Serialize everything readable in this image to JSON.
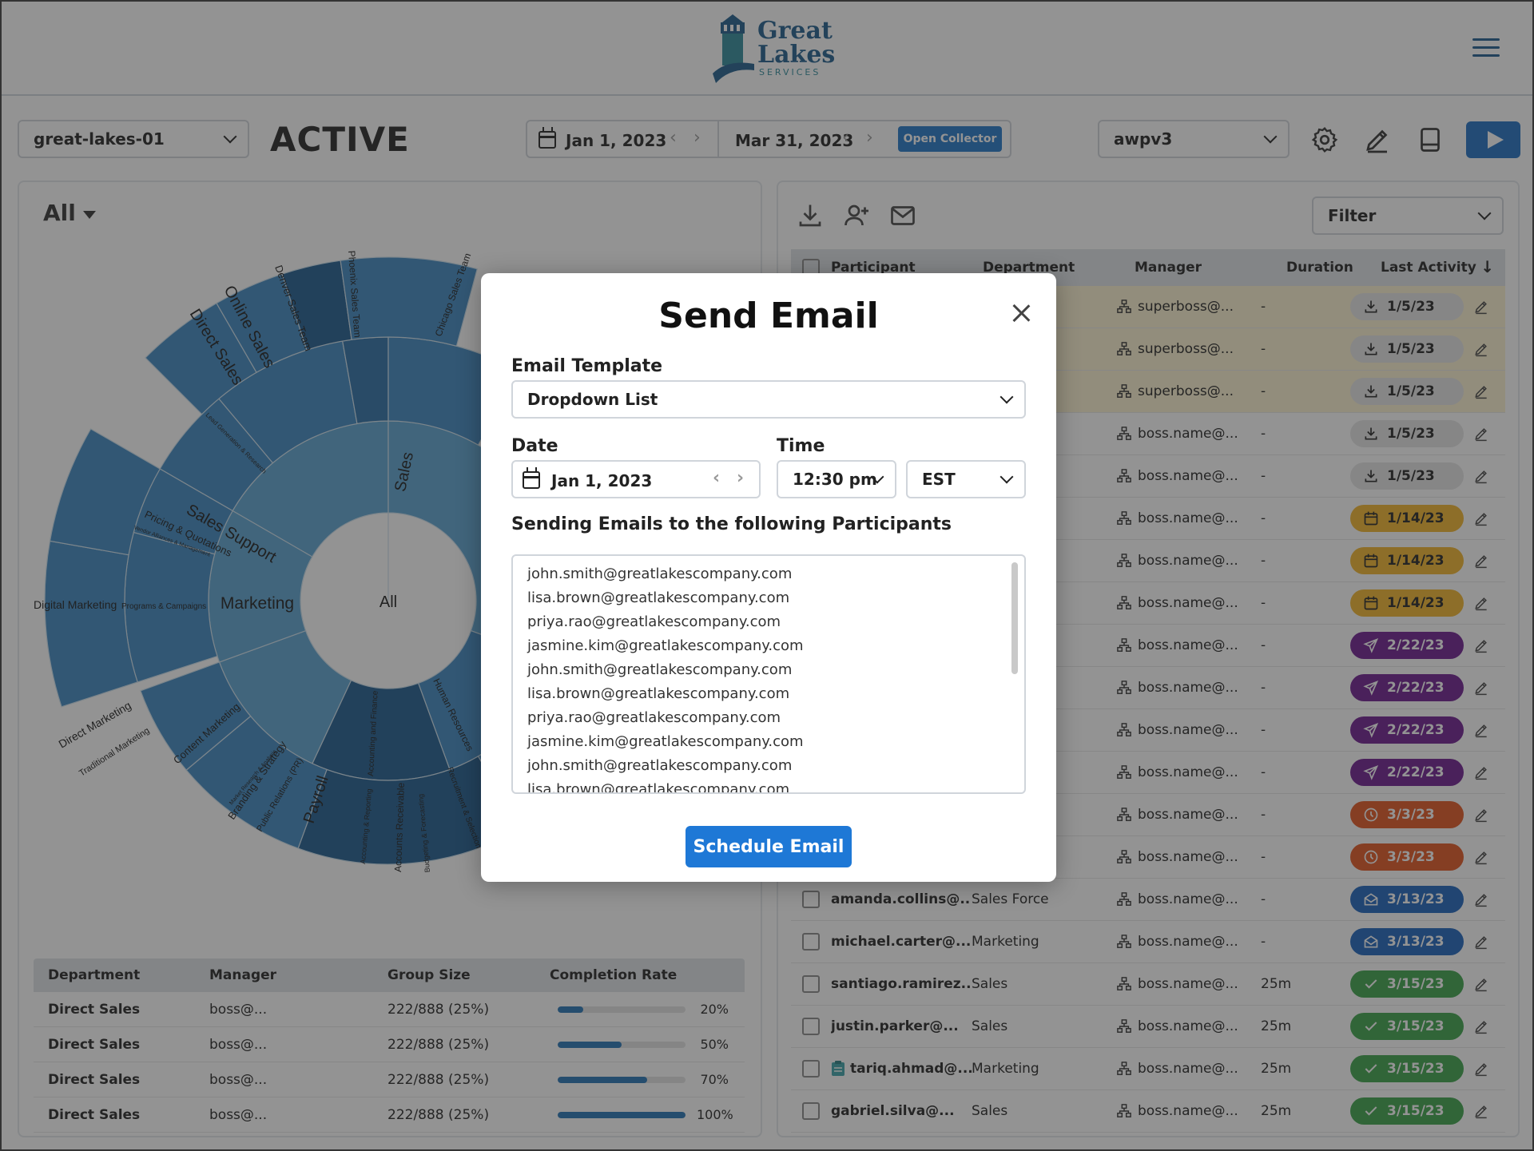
{
  "brand": {
    "name_line1": "Great",
    "name_line2": "Lakes",
    "sub": "SERVICES"
  },
  "toolbar": {
    "collector": "great-lakes-01",
    "status": "ACTIVE",
    "start_date": "Jan 1, 2023",
    "end_date": "Mar 31, 2023",
    "open_collector": "Open Collector",
    "version": "awpv3"
  },
  "left": {
    "filter": "All",
    "sunburst_labels": {
      "center": "All",
      "sales": "Sales",
      "marketing": "Marketing",
      "direct_sales": "Direct Sales",
      "online_sales": "Online Sales",
      "denver": "Denver Sales Team",
      "phoenix": "Phoenix Sales Team",
      "chicago": "Chicago Sales Team",
      "sales_support": "Sales Support",
      "digital_marketing": "Digital Marketing",
      "programs": "Programs & Campaigns",
      "payroll": "Payroll",
      "direct_marketing": "Direct Marketing",
      "traditional": "Traditional Marketing",
      "content": "Content Marketing",
      "branding": "Branding & Strategy",
      "pr": "Public Relations (PR)",
      "hr": "Human Resources",
      "pricing": "Pricing & Quotations",
      "lead": "Lead Generation & Research",
      "acc_fin": "Accounting and Finance",
      "acc_rep": "Accounting & Reporting",
      "acc_rec": "Accounts Receivable",
      "budget": "Budgeting & Forecasting",
      "recruit": "Recruitment & Selection",
      "market_research": "Market Research & Analysis",
      "vendor": "Vendor Alliances & Management"
    },
    "table": {
      "headers": [
        "Department",
        "Manager",
        "Group Size",
        "Completion Rate"
      ],
      "rows": [
        {
          "dept": "Direct Sales",
          "manager": "boss@...",
          "size": "222/888 (25%)",
          "rate": 20,
          "rate_label": "20%"
        },
        {
          "dept": "Direct Sales",
          "manager": "boss@...",
          "size": "222/888 (25%)",
          "rate": 50,
          "rate_label": "50%"
        },
        {
          "dept": "Direct Sales",
          "manager": "boss@...",
          "size": "222/888 (25%)",
          "rate": 70,
          "rate_label": "70%"
        },
        {
          "dept": "Direct Sales",
          "manager": "boss@...",
          "size": "222/888 (25%)",
          "rate": 100,
          "rate_label": "100%"
        }
      ]
    }
  },
  "right": {
    "filter": "Filter",
    "headers": [
      "Participant",
      "Department",
      "Manager",
      "Duration",
      "Last Activity"
    ],
    "rows": [
      {
        "p": "",
        "d": "",
        "m": "superboss@...",
        "du": "-",
        "act": "1/5/23",
        "kind": "gray",
        "icon": "download",
        "yellow": true
      },
      {
        "p": "",
        "d": "",
        "m": "superboss@...",
        "du": "-",
        "act": "1/5/23",
        "kind": "gray",
        "icon": "download",
        "yellow": true
      },
      {
        "p": "",
        "d": "",
        "m": "superboss@...",
        "du": "-",
        "act": "1/5/23",
        "kind": "gray",
        "icon": "download",
        "yellow": true
      },
      {
        "p": "",
        "d": "",
        "m": "boss.name@...",
        "du": "-",
        "act": "1/5/23",
        "kind": "gray",
        "icon": "download"
      },
      {
        "p": "",
        "d": "",
        "m": "boss.name@...",
        "du": "-",
        "act": "1/5/23",
        "kind": "gray",
        "icon": "download"
      },
      {
        "p": "",
        "d": "",
        "m": "boss.name@...",
        "du": "-",
        "act": "1/14/23",
        "kind": "yellow",
        "icon": "calendar"
      },
      {
        "p": "",
        "d": "",
        "m": "boss.name@...",
        "du": "-",
        "act": "1/14/23",
        "kind": "yellow",
        "icon": "calendar"
      },
      {
        "p": "",
        "d": "",
        "m": "boss.name@...",
        "du": "-",
        "act": "1/14/23",
        "kind": "yellow",
        "icon": "calendar"
      },
      {
        "p": "",
        "d": "",
        "m": "boss.name@...",
        "du": "-",
        "act": "2/22/23",
        "kind": "purple",
        "icon": "send"
      },
      {
        "p": "",
        "d": "",
        "m": "boss.name@...",
        "du": "-",
        "act": "2/22/23",
        "kind": "purple",
        "icon": "send"
      },
      {
        "p": "",
        "d": "",
        "m": "boss.name@...",
        "du": "-",
        "act": "2/22/23",
        "kind": "purple",
        "icon": "send"
      },
      {
        "p": "",
        "d": "",
        "m": "boss.name@...",
        "du": "-",
        "act": "2/22/23",
        "kind": "purple",
        "icon": "send"
      },
      {
        "p": "",
        "d": "",
        "m": "boss.name@...",
        "du": "-",
        "act": "3/3/23",
        "kind": "orange",
        "icon": "clock"
      },
      {
        "p": "",
        "d": "",
        "m": "boss.name@...",
        "du": "-",
        "act": "3/3/23",
        "kind": "orange",
        "icon": "clock"
      },
      {
        "p": "amanda.collins@...",
        "d": "Sales Force",
        "m": "boss.name@...",
        "du": "-",
        "act": "3/13/23",
        "kind": "blue",
        "icon": "mail-open"
      },
      {
        "p": "michael.carter@...",
        "d": "Marketing",
        "m": "boss.name@...",
        "du": "-",
        "act": "3/13/23",
        "kind": "blue",
        "icon": "mail-open"
      },
      {
        "p": "santiago.ramirez...",
        "d": "Sales",
        "m": "boss.name@...",
        "du": "25m",
        "act": "3/15/23",
        "kind": "green",
        "icon": "check"
      },
      {
        "p": "justin.parker@...",
        "d": "Sales",
        "m": "boss.name@...",
        "du": "25m",
        "act": "3/15/23",
        "kind": "green",
        "icon": "check"
      },
      {
        "p": "tariq.ahmad@...",
        "d": "Marketing",
        "m": "boss.name@...",
        "du": "25m",
        "act": "3/15/23",
        "kind": "green",
        "icon": "check",
        "note": true
      },
      {
        "p": "gabriel.silva@...",
        "d": "Sales",
        "m": "boss.name@...",
        "du": "25m",
        "act": "3/15/23",
        "kind": "green",
        "icon": "check"
      }
    ]
  },
  "modal": {
    "title": "Send Email",
    "template_label": "Email Template",
    "template_value": "Dropdown List",
    "date_label": "Date",
    "date_value": "Jan 1, 2023",
    "time_label": "Time",
    "time_value": "12:30 pm",
    "tz_value": "EST",
    "participants_label": "Sending Emails to the following Participants",
    "emails": [
      "john.smith@greatlakescompany.com",
      "lisa.brown@greatlakescompany.com",
      "priya.rao@greatlakescompany.com",
      "jasmine.kim@greatlakescompany.com",
      "john.smith@greatlakescompany.com",
      "lisa.brown@greatlakescompany.com",
      "priya.rao@greatlakescompany.com",
      "jasmine.kim@greatlakescompany.com",
      "john.smith@greatlakescompany.com",
      "lisa.brown@greatlakescompany.com"
    ],
    "submit": "Schedule Email"
  }
}
